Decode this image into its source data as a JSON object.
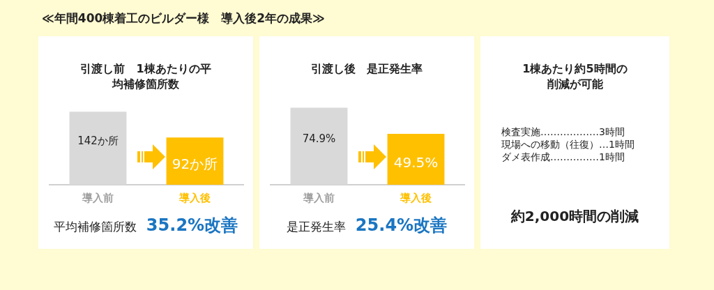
{
  "chart_data": [
    {
      "type": "bar",
      "title": "引渡し前　1棟あたりの平均補修箇所数",
      "categories": [
        "導入前",
        "導入後"
      ],
      "values": [
        142,
        92
      ],
      "colors": [
        "#d9d9d9",
        "#ffc000"
      ],
      "value_labels": [
        "142か所",
        "92か所"
      ],
      "annotations": [
        "≪年間400棟着工のビルダー様　導入後2年の成果≫",
        "平均補修箇所数",
        "35.2%改善"
      ]
    },
    {
      "type": "bar",
      "title": "引渡し後　是正発生率",
      "categories": [
        "導入前",
        "導入後"
      ],
      "values": [
        74.9,
        49.5
      ],
      "colors": [
        "#d9d9d9",
        "#ffc000"
      ],
      "value_labels": [
        "74.9%",
        "49.5%"
      ],
      "annotations": [
        "是正発生率",
        "25.4%改善"
      ]
    },
    {
      "type": "other",
      "title": "1棟あたり約5時間の削減が可能",
      "annotations": [
        "検査実施………………3時間",
        "現場への移動（往復）…1時間",
        "ダメ表作成……………1時間",
        "約2,000時間の削減"
      ]
    }
  ]
}
